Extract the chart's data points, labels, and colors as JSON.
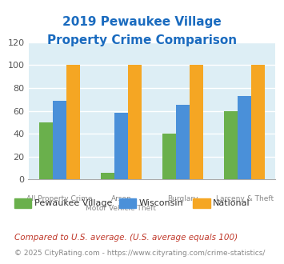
{
  "title_line1": "2019 Pewaukee Village",
  "title_line2": "Property Crime Comparison",
  "title_color": "#1a6bbf",
  "categories": [
    "All Property Crime",
    "Arson\nMotor Vehicle Theft",
    "Burglary",
    "Larceny & Theft"
  ],
  "cat_labels_row1": [
    "All Property Crime",
    "Arson",
    "Burglary",
    "Larceny & Theft"
  ],
  "cat_labels_row2": [
    "",
    "Motor Vehicle Theft",
    "",
    ""
  ],
  "series": {
    "Pewaukee Village": [
      50,
      6,
      40,
      60
    ],
    "Wisconsin": [
      69,
      58,
      65,
      73
    ],
    "National": [
      100,
      100,
      100,
      100
    ]
  },
  "colors": {
    "Pewaukee Village": "#6ab04c",
    "Wisconsin": "#4a90d9",
    "National": "#f5a623"
  },
  "ylim": [
    0,
    120
  ],
  "yticks": [
    0,
    20,
    40,
    60,
    80,
    100,
    120
  ],
  "background_color": "#ddeef5",
  "plot_bg_color": "#ddeef5",
  "grid_color": "#ffffff",
  "footnote1": "Compared to U.S. average. (U.S. average equals 100)",
  "footnote2": "© 2025 CityRating.com - https://www.cityrating.com/crime-statistics/",
  "footnote1_color": "#c0392b",
  "footnote2_color": "#888888",
  "bar_width": 0.22,
  "group_positions": [
    0,
    1,
    2,
    3
  ]
}
